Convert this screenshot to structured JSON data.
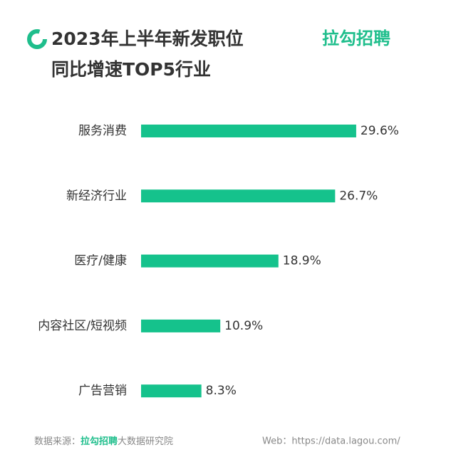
{
  "chart_data": {
    "type": "bar",
    "orientation": "horizontal",
    "title_lines": [
      "2023年上半年新发职位",
      "同比增速TOP5行业"
    ],
    "brand": "拉勾招聘",
    "categories": [
      "服务消费",
      "新经济行业",
      "医疗/健康",
      "内容社区/短视频",
      "广告营销"
    ],
    "values": [
      29.6,
      26.7,
      18.9,
      10.9,
      8.3
    ],
    "value_labels": [
      "29.6%",
      "26.7%",
      "18.9%",
      "10.9%",
      "8.3%"
    ],
    "color": "#15c28c",
    "source": {
      "prefix": "数据来源：",
      "brand": "拉勾招聘",
      "suffix": "大数据研究院"
    },
    "web": "Web：https://data.lagou.com/"
  }
}
